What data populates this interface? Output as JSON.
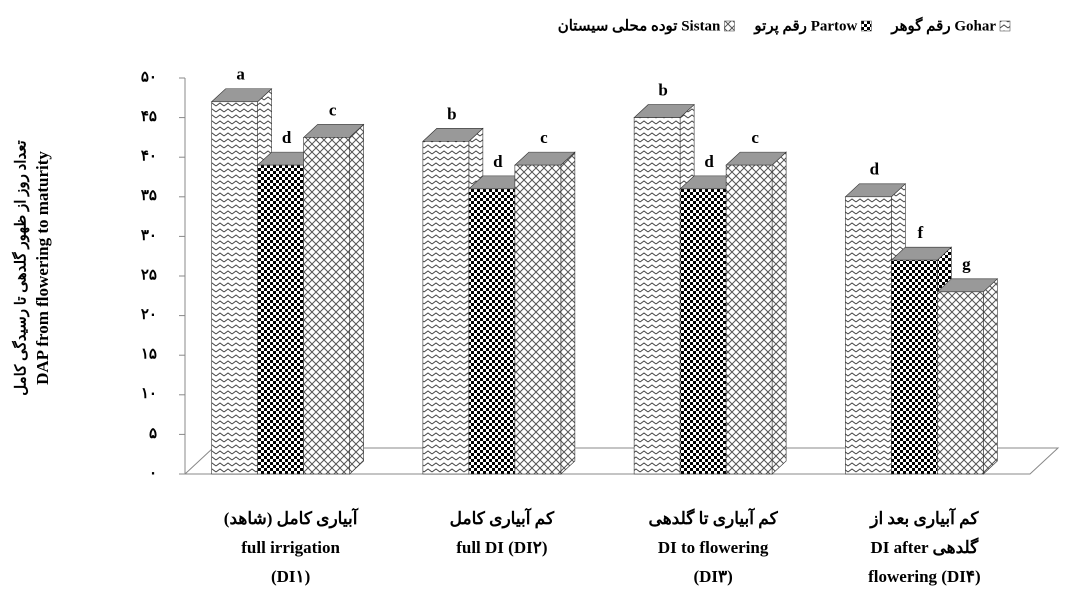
{
  "chart_data": {
    "type": "bar3d",
    "ylabel": [
      "تعداد روز از ظهور گلدهی تا رسیدگی کامل",
      "DAP from flowering to maturity"
    ],
    "categories": [
      [
        "آبیاری کامل (شاهد)",
        "full irrigation",
        "(DI۱)"
      ],
      [
        "کم آبیاری کامل",
        "full DI (DI۲)"
      ],
      [
        "کم آبیاری تا گلدهی",
        "DI to flowering",
        "(DI۳)"
      ],
      [
        "کم آبیاری بعد از",
        "DI after گلدهی",
        "flowering (DI۴)"
      ]
    ],
    "series": [
      {
        "name": "رقم گوهر Gohar",
        "pattern": "zigzag",
        "values": [
          47,
          42,
          45,
          35
        ],
        "annotations": [
          "a",
          "b",
          "b",
          "d"
        ]
      },
      {
        "name": "رقم پرتو Partow",
        "pattern": "checker",
        "values": [
          39,
          36,
          36,
          27
        ],
        "annotations": [
          "d",
          "d",
          "d",
          "f"
        ]
      },
      {
        "name": "توده محلی سیستان Sistan",
        "pattern": "cross",
        "values": [
          42.5,
          39,
          39,
          23
        ],
        "annotations": [
          "c",
          "c",
          "c",
          "g"
        ]
      }
    ],
    "ylim": [
      0,
      50
    ],
    "yticks": [
      {
        "value": 0,
        "label": "۰"
      },
      {
        "value": 5,
        "label": "۵"
      },
      {
        "value": 10,
        "label": "۱۰"
      },
      {
        "value": 15,
        "label": "۱۵"
      },
      {
        "value": 20,
        "label": "۲۰"
      },
      {
        "value": 25,
        "label": "۲۵"
      },
      {
        "value": 30,
        "label": "۳۰"
      },
      {
        "value": 35,
        "label": "۳۵"
      },
      {
        "value": 40,
        "label": "۴۰"
      },
      {
        "value": 45,
        "label": "۴۵"
      },
      {
        "value": 50,
        "label": "۵۰"
      }
    ]
  }
}
